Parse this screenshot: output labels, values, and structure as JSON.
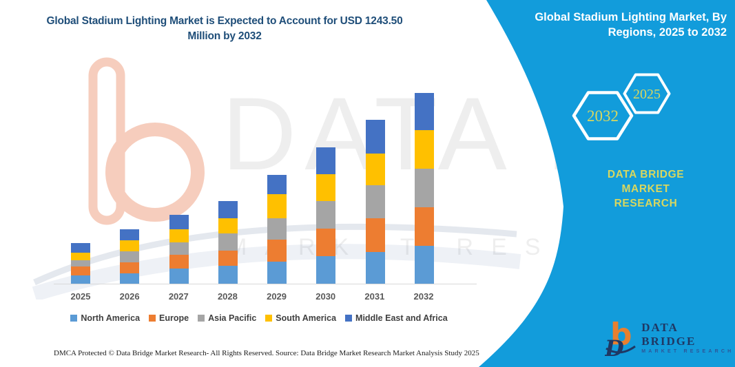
{
  "header": {
    "title": "Global Stadium Lighting Market is Expected to Account for USD 1243.50 Million by 2032",
    "title_lines": [
      "Global Stadium Lighting Market is Expected to Account for USD 1243.50",
      "Million by 2032"
    ]
  },
  "panel": {
    "title": "Global Stadium Lighting Market, By Regions, 2025 to 2032",
    "title_lines": [
      "Global Stadium Lighting Market, By",
      "Regions, 2025 to 2032"
    ],
    "hexagons": [
      {
        "label": "2032"
      },
      {
        "label": "2025"
      }
    ],
    "brand_lines": [
      "DATA BRIDGE MARKET",
      "RESEARCH"
    ]
  },
  "chart_data": {
    "type": "bar",
    "stacked": true,
    "title": "Global Stadium Lighting Market, By Regions, 2025 to 2032",
    "xlabel": "",
    "ylabel": "",
    "unit": "USD Million",
    "axis_labels_visible": false,
    "grid": false,
    "legend_position": "bottom",
    "ylim": [
      0,
      1300
    ],
    "categories": [
      "2025",
      "2026",
      "2027",
      "2028",
      "2029",
      "2030",
      "2031",
      "2032"
    ],
    "series": [
      {
        "name": "North America",
        "color": "#5B9BD5",
        "values": [
          56,
          69,
          97,
          117,
          142,
          180,
          207,
          245
        ]
      },
      {
        "name": "Europe",
        "color": "#ED7D31",
        "values": [
          57,
          70,
          91,
          98,
          147,
          180,
          218,
          254
        ]
      },
      {
        "name": "Asia Pacific",
        "color": "#A5A5A5",
        "values": [
          40,
          71,
          81,
          112,
          138,
          177,
          217,
          250
        ]
      },
      {
        "name": "South America",
        "color": "#FFC000",
        "values": [
          49,
          72,
          84,
          102,
          159,
          177,
          205,
          252
        ]
      },
      {
        "name": "Middle East and Africa",
        "color": "#4472C4",
        "values": [
          63,
          75,
          96,
          111,
          126,
          174,
          222,
          242.5
        ]
      }
    ],
    "totals": [
      265,
      357,
      449,
      540,
      712,
      888,
      1069,
      1243.5
    ],
    "final_year_total": 1243.5
  },
  "footer": {
    "dmca": "DMCA Protected © Data Bridge Market Research- All Rights Reserved.",
    "source": "Source: Data Bridge Market Research Market Analysis Study 2025"
  },
  "logo": {
    "title": "DATA BRIDGE",
    "subtitle": "MARKET RESEARCH"
  },
  "watermark": {
    "word1": "DATA BRIDGE",
    "word2": "MARKET RESEARCH"
  },
  "colors": {
    "panel_background": "#129CDB",
    "hexagon_outline": "#FFFFFF",
    "hexagon_year_text": "#D8D75F",
    "panel_brand_text": "#D8D75F",
    "title_text": "#1F4E79",
    "axis_label_text": "#595959",
    "legend_text": "#3F3F3F",
    "axis_line": "#D9D9D9",
    "logo_orange": "#E8802F",
    "logo_navy": "#1F3864"
  }
}
